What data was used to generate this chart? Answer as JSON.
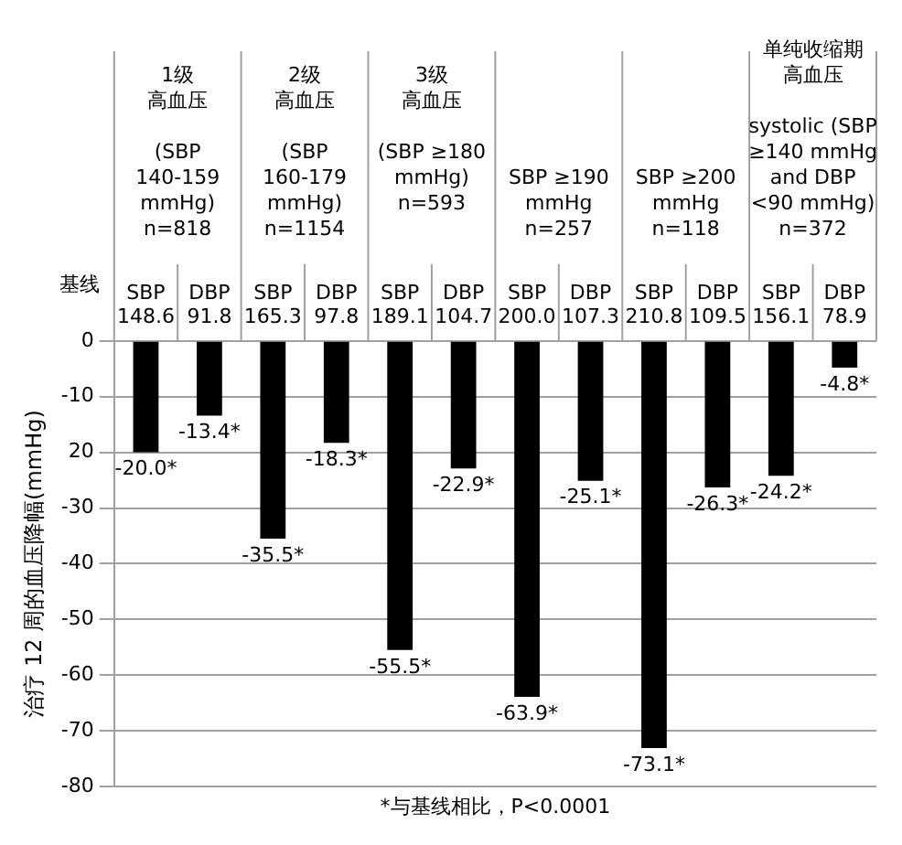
{
  "chart_data": {
    "type": "bar",
    "ylabel": "治疗 12 周的血压降幅(mmHg)",
    "categories": [
      "SBP 148.6",
      "DBP 91.8",
      "SBP 165.3",
      "DBP 97.8",
      "SBP 189.1",
      "DBP 104.7",
      "SBP 200.0",
      "DBP 107.3",
      "SBP 210.8",
      "DBP 109.5",
      "SBP 156.1",
      "DBP 78.9"
    ],
    "values": [
      -20.0,
      -13.4,
      -35.5,
      -18.3,
      -55.5,
      -22.9,
      -63.9,
      -25.1,
      -73.1,
      -26.3,
      -24.2,
      -4.8
    ],
    "value_labels": [
      "-20.0*",
      "-13.4*",
      "-35.5*",
      "-18.3*",
      "-55.5*",
      "-22.9*",
      "-63.9*",
      "-25.1*",
      "-73.1*",
      "-26.3*",
      "-24.2*",
      "-4.8*"
    ],
    "color": "#000000",
    "ylim": [
      -80,
      0
    ],
    "yticks": [
      -80,
      -70,
      -60,
      -50,
      -40,
      -30,
      {
        "value": -20,
        "label": "20"
      },
      -10,
      0
    ],
    "grid": "y",
    "annotations": [
      "基线",
      "1级",
      "高血压",
      "(SBP\n140-159\nmmHg)\nn=818",
      "2级",
      "高血压",
      "(SBP\n160-179\nmmHg)\nn=1154",
      "3级",
      "高血压",
      "(SBP ≥180\nmmHg)\nn=593",
      "SBP ≥190\nmmHg\nn=257",
      "SBP ≥200\nmmHg\nn=118",
      "单纯收缩期",
      "高血压",
      "systolic (SBP\n≥140 mmHg\nand DBP\n<90 mmHg)\nn=372",
      "*与基线相比，P<0.0001"
    ]
  }
}
